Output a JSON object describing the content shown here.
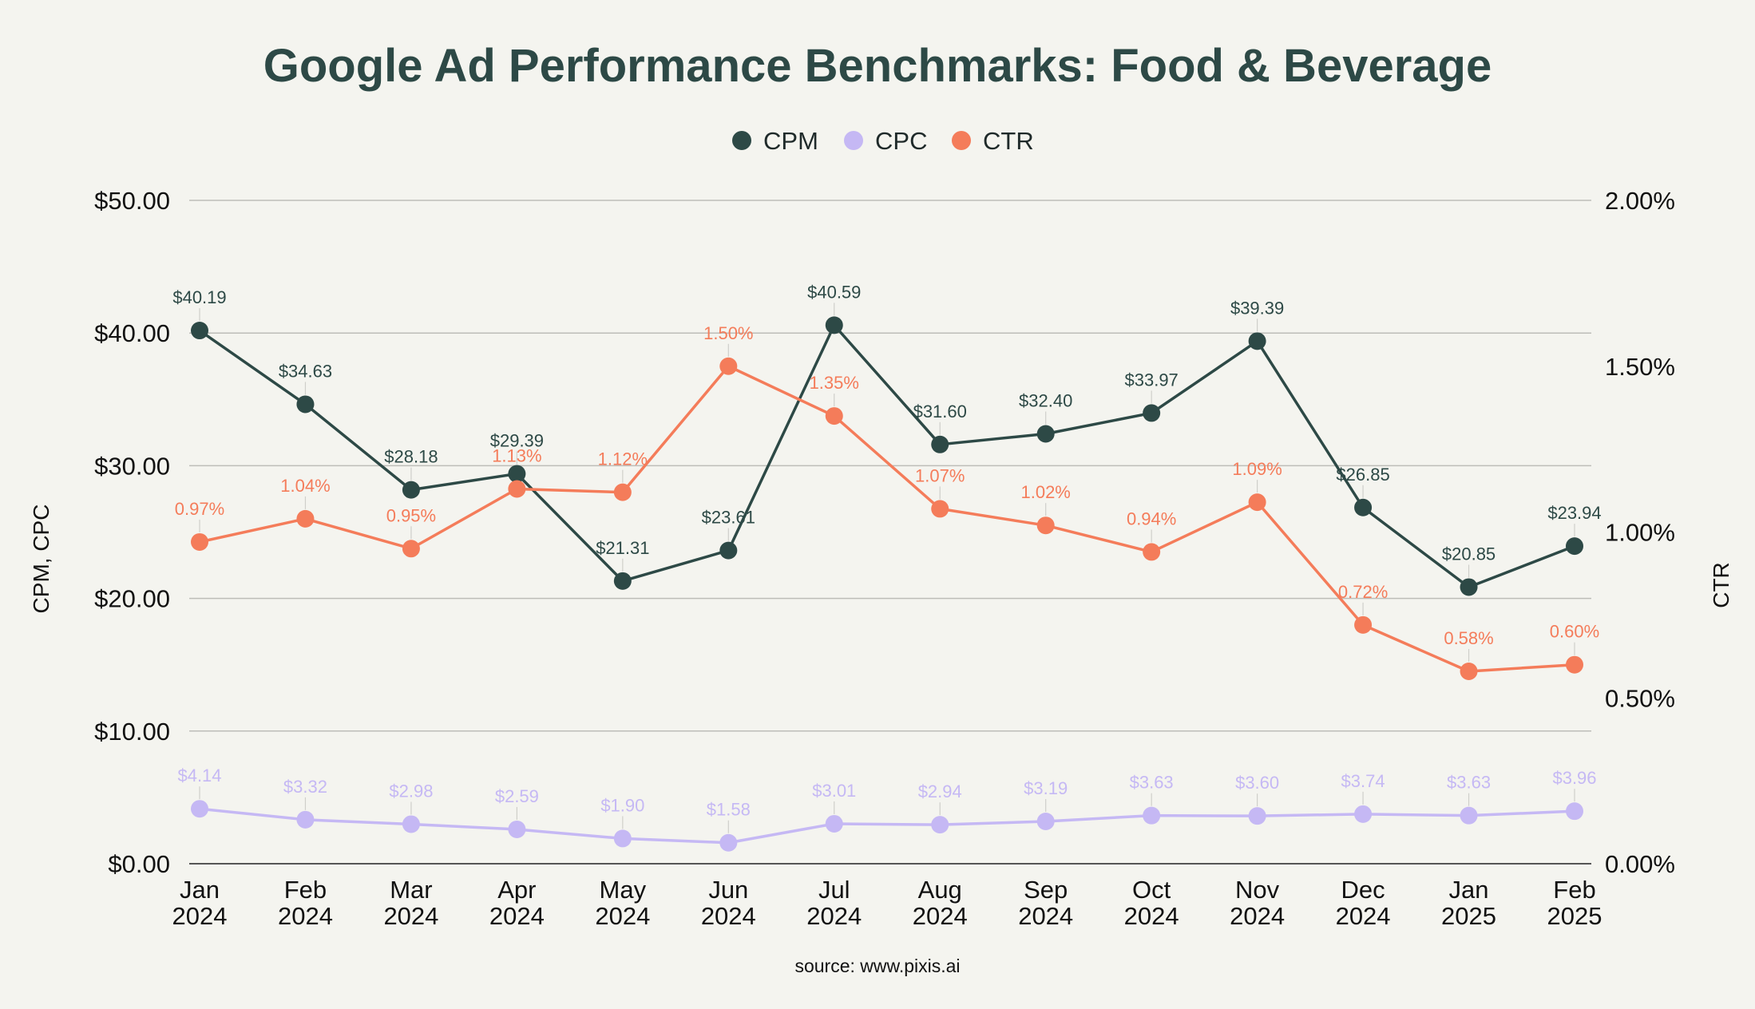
{
  "chart_data": {
    "type": "line",
    "title": "Google Ad Performance Benchmarks: Food & Beverage",
    "source": "source: www.pixis.ai",
    "categories": [
      [
        "Jan",
        "2024"
      ],
      [
        "Feb",
        "2024"
      ],
      [
        "Mar",
        "2024"
      ],
      [
        "Apr",
        "2024"
      ],
      [
        "May",
        "2024"
      ],
      [
        "Jun",
        "2024"
      ],
      [
        "Jul",
        "2024"
      ],
      [
        "Aug",
        "2024"
      ],
      [
        "Sep",
        "2024"
      ],
      [
        "Oct",
        "2024"
      ],
      [
        "Nov",
        "2024"
      ],
      [
        "Dec",
        "2024"
      ],
      [
        "Jan",
        "2025"
      ],
      [
        "Feb",
        "2025"
      ]
    ],
    "y_left": {
      "label": "CPM, CPC",
      "min": 0,
      "max": 50,
      "ticks": [
        0,
        10,
        20,
        30,
        40,
        50
      ],
      "tick_labels": [
        "$0.00",
        "$10.00",
        "$20.00",
        "$30.00",
        "$40.00",
        "$50.00"
      ]
    },
    "y_right": {
      "label": "CTR",
      "min": 0,
      "max": 2,
      "ticks": [
        0,
        0.5,
        1,
        1.5,
        2
      ],
      "tick_labels": [
        "0.00%",
        "0.50%",
        "1.00%",
        "1.50%",
        "2.00%"
      ]
    },
    "grid": true,
    "legend_position": "top-center",
    "series": [
      {
        "name": "CPM",
        "axis": "left",
        "color": "#2d4946",
        "values": [
          40.19,
          34.63,
          28.18,
          29.39,
          21.31,
          23.61,
          40.59,
          31.6,
          32.4,
          33.97,
          39.39,
          26.85,
          20.85,
          23.94
        ],
        "labels": [
          "$40.19",
          "$34.63",
          "$28.18",
          "$29.39",
          "$21.31",
          "$23.61",
          "$40.59",
          "$31.60",
          "$32.40",
          "$33.97",
          "$39.39",
          "$26.85",
          "$20.85",
          "$23.94"
        ]
      },
      {
        "name": "CPC",
        "axis": "left",
        "color": "#c5b8f4",
        "values": [
          4.14,
          3.32,
          2.98,
          2.59,
          1.9,
          1.58,
          3.01,
          2.94,
          3.19,
          3.63,
          3.6,
          3.74,
          3.63,
          3.96
        ],
        "labels": [
          "$4.14",
          "$3.32",
          "$2.98",
          "$2.59",
          "$1.90",
          "$1.58",
          "$3.01",
          "$2.94",
          "$3.19",
          "$3.63",
          "$3.60",
          "$3.74",
          "$3.63",
          "$3.96"
        ]
      },
      {
        "name": "CTR",
        "axis": "right",
        "color": "#f47c5a",
        "values": [
          0.97,
          1.04,
          0.95,
          1.13,
          1.12,
          1.5,
          1.35,
          1.07,
          1.02,
          0.94,
          1.09,
          0.72,
          0.58,
          0.6
        ],
        "labels": [
          "0.97%",
          "1.04%",
          "0.95%",
          "1.13%",
          "1.12%",
          "1.50%",
          "1.35%",
          "1.07%",
          "1.02%",
          "0.94%",
          "1.09%",
          "0.72%",
          "0.58%",
          "0.60%"
        ]
      }
    ]
  }
}
